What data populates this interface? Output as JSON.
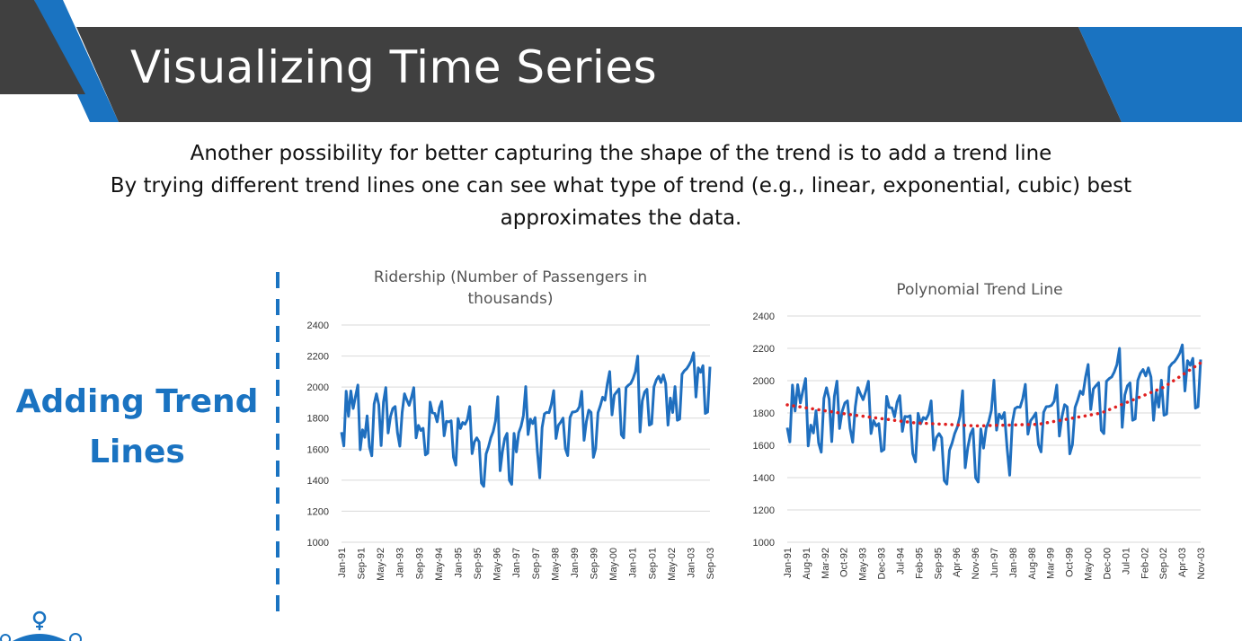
{
  "slide": {
    "title": "Visualizing Time Series",
    "intro_line1": "Another possibility for better capturing the shape of the trend is to add a trend line",
    "intro_line2": "By trying different trend lines one can see what type of trend (e.g., linear, exponential, cubic) best approximates the data.",
    "side_heading": "Adding Trend Lines",
    "colors": {
      "banner_dark": "#404040",
      "accent_blue": "#1a73c1",
      "series_blue": "#1f6fbf",
      "trend_red": "#e02020"
    },
    "footer_icon": "lightbulb-person-icon"
  },
  "chart_data": [
    {
      "type": "line",
      "title": "Ridership (Number of Passengers in thousands)",
      "title_lines": [
        "Ridership (Number of Passengers in",
        "thousands)"
      ],
      "ylim": [
        1000,
        2400
      ],
      "yticks": [
        1000,
        1200,
        1400,
        1600,
        1800,
        2000,
        2200,
        2400
      ],
      "xtick_labels": [
        "Jan-91",
        "Sep-91",
        "May-92",
        "Jan-93",
        "Sep-93",
        "May-94",
        "Jan-95",
        "Sep-95",
        "May-96",
        "Jan-97",
        "Sep-97",
        "May-98",
        "Jan-99",
        "Sep-99",
        "May-00",
        "Jan-01",
        "Sep-01",
        "May-02",
        "Jan-03",
        "Sep-03"
      ],
      "grid": true,
      "series": [
        {
          "values": [
            1709,
            1621,
            1973,
            1812,
            1975,
            1862,
            1940,
            2013,
            1596,
            1725,
            1676,
            1814,
            1615,
            1557,
            1891,
            1956,
            1885,
            1623,
            1903,
            1997,
            1704,
            1810,
            1862,
            1875,
            1705,
            1619,
            1837,
            1957,
            1917,
            1882,
            1933,
            1996,
            1673,
            1753,
            1720,
            1734,
            1563,
            1574,
            1903,
            1834,
            1831,
            1776,
            1868,
            1907,
            1686,
            1779,
            1776,
            1783,
            1548,
            1497,
            1798,
            1733,
            1772,
            1761,
            1792,
            1875,
            1571,
            1647,
            1673,
            1646,
            1381,
            1360,
            1569,
            1614,
            1673,
            1712,
            1780,
            1938,
            1461,
            1586,
            1668,
            1702,
            1399,
            1373,
            1701,
            1582,
            1706,
            1747,
            1816,
            2003,
            1694,
            1793,
            1765,
            1803,
            1584,
            1415,
            1739,
            1827,
            1837,
            1835,
            1889,
            1977,
            1669,
            1753,
            1774,
            1800,
            1604,
            1559,
            1804,
            1839,
            1840,
            1847,
            1873,
            1973,
            1657,
            1778,
            1851,
            1837,
            1547,
            1604,
            1835,
            1880,
            1935,
            1915,
            2021,
            2100,
            1821,
            1949,
            1969,
            1988,
            1693,
            1672,
            1996,
            2012,
            2023,
            2054,
            2099,
            2200,
            1711,
            1911,
            1968,
            1986,
            1755,
            1763,
            2002,
            2046,
            2069,
            2029,
            2079,
            2022,
            1755,
            1929,
            1836,
            2003,
            1786,
            1794,
            2083,
            2105,
            2118,
            2141,
            2170,
            2221,
            1936,
            2124,
            2095,
            2138,
            1830,
            1839,
            2131
          ]
        }
      ]
    },
    {
      "type": "line",
      "title": "Polynomial Trend Line",
      "ylim": [
        1000,
        2400
      ],
      "yticks": [
        1000,
        1200,
        1400,
        1600,
        1800,
        2000,
        2200,
        2400
      ],
      "xtick_labels": [
        "Jan-91",
        "Aug-91",
        "Mar-92",
        "Oct-92",
        "May-93",
        "Dec-93",
        "Jul-94",
        "Feb-95",
        "Sep-95",
        "Apr-96",
        "Nov-96",
        "Jun-97",
        "Jan-98",
        "Aug-98",
        "Mar-99",
        "Oct-99",
        "May-00",
        "Dec-00",
        "Jul-01",
        "Feb-02",
        "Sep-02",
        "Apr-03",
        "Nov-03"
      ],
      "grid": true,
      "series": [
        {
          "values": [
            1709,
            1621,
            1973,
            1812,
            1975,
            1862,
            1940,
            2013,
            1596,
            1725,
            1676,
            1814,
            1615,
            1557,
            1891,
            1956,
            1885,
            1623,
            1903,
            1997,
            1704,
            1810,
            1862,
            1875,
            1705,
            1619,
            1837,
            1957,
            1917,
            1882,
            1933,
            1996,
            1673,
            1753,
            1720,
            1734,
            1563,
            1574,
            1903,
            1834,
            1831,
            1776,
            1868,
            1907,
            1686,
            1779,
            1776,
            1783,
            1548,
            1497,
            1798,
            1733,
            1772,
            1761,
            1792,
            1875,
            1571,
            1647,
            1673,
            1646,
            1381,
            1360,
            1569,
            1614,
            1673,
            1712,
            1780,
            1938,
            1461,
            1586,
            1668,
            1702,
            1399,
            1373,
            1701,
            1582,
            1706,
            1747,
            1816,
            2003,
            1694,
            1793,
            1765,
            1803,
            1584,
            1415,
            1739,
            1827,
            1837,
            1835,
            1889,
            1977,
            1669,
            1753,
            1774,
            1800,
            1604,
            1559,
            1804,
            1839,
            1840,
            1847,
            1873,
            1973,
            1657,
            1778,
            1851,
            1837,
            1547,
            1604,
            1835,
            1880,
            1935,
            1915,
            2021,
            2100,
            1821,
            1949,
            1969,
            1988,
            1693,
            1672,
            1996,
            2012,
            2023,
            2054,
            2099,
            2200,
            1711,
            1911,
            1968,
            1986,
            1755,
            1763,
            2002,
            2046,
            2069,
            2029,
            2079,
            2022,
            1755,
            1929,
            1836,
            2003,
            1786,
            1794,
            2083,
            2105,
            2118,
            2141,
            2170,
            2221,
            1936,
            2124,
            2095,
            2138,
            1830,
            1839,
            2131
          ]
        }
      ],
      "trend": {
        "style": "dotted",
        "x": [
          0,
          24,
          48,
          72,
          96,
          120,
          144,
          158
        ],
        "y": [
          1850,
          1790,
          1740,
          1720,
          1730,
          1800,
          1960,
          2110
        ]
      }
    }
  ]
}
